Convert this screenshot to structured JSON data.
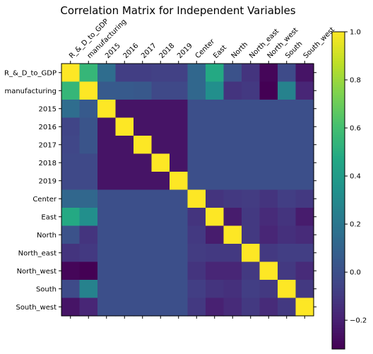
{
  "chart_data": {
    "type": "heatmap",
    "title": "Correlation Matrix for Independent Variables",
    "labels": [
      "R_&_D_to_GDP",
      "manufacturing",
      "2015",
      "2016",
      "2017",
      "2018",
      "2019",
      "Center",
      "East",
      "North",
      "North_east",
      "North_west",
      "South",
      "South_west"
    ],
    "matrix": [
      [
        1.0,
        0.55,
        0.15,
        -0.08,
        -0.08,
        -0.07,
        -0.07,
        0.12,
        0.48,
        0.01,
        -0.12,
        -0.3,
        -0.02,
        -0.25
      ],
      [
        0.55,
        1.0,
        0.05,
        0.05,
        0.04,
        -0.03,
        -0.03,
        0.12,
        0.33,
        -0.12,
        -0.1,
        -0.32,
        0.26,
        -0.18
      ],
      [
        0.15,
        0.05,
        1.0,
        -0.25,
        -0.25,
        -0.25,
        -0.25,
        0.0,
        0.0,
        0.0,
        0.0,
        0.0,
        0.0,
        0.0
      ],
      [
        -0.05,
        0.02,
        -0.25,
        1.0,
        -0.25,
        -0.25,
        -0.25,
        0.0,
        0.0,
        0.0,
        0.0,
        0.0,
        0.0,
        0.0
      ],
      [
        -0.04,
        0.02,
        -0.25,
        -0.25,
        1.0,
        -0.25,
        -0.25,
        0.0,
        0.0,
        0.0,
        0.0,
        0.0,
        0.0,
        0.0
      ],
      [
        -0.03,
        -0.03,
        -0.25,
        -0.25,
        -0.25,
        1.0,
        -0.25,
        0.0,
        0.0,
        0.0,
        0.0,
        0.0,
        0.0,
        0.0
      ],
      [
        -0.03,
        -0.03,
        -0.25,
        -0.25,
        -0.25,
        -0.25,
        1.0,
        0.0,
        0.0,
        0.0,
        0.0,
        0.0,
        0.0,
        0.0
      ],
      [
        0.12,
        0.12,
        0.0,
        0.0,
        0.0,
        0.0,
        0.0,
        1.0,
        -0.12,
        -0.1,
        -0.09,
        -0.12,
        -0.08,
        -0.1
      ],
      [
        0.48,
        0.33,
        0.0,
        0.0,
        0.0,
        0.0,
        0.0,
        -0.12,
        1.0,
        -0.22,
        -0.1,
        -0.16,
        -0.12,
        -0.22
      ],
      [
        0.01,
        -0.12,
        0.0,
        0.0,
        0.0,
        0.0,
        0.0,
        -0.1,
        -0.22,
        1.0,
        -0.1,
        -0.18,
        -0.14,
        -0.16
      ],
      [
        -0.12,
        -0.1,
        0.0,
        0.0,
        0.0,
        0.0,
        0.0,
        -0.09,
        -0.1,
        -0.1,
        1.0,
        -0.1,
        -0.08,
        -0.08
      ],
      [
        -0.3,
        -0.32,
        0.0,
        0.0,
        0.0,
        0.0,
        0.0,
        -0.12,
        -0.18,
        -0.18,
        -0.1,
        1.0,
        -0.1,
        -0.16
      ],
      [
        -0.02,
        0.26,
        0.0,
        0.0,
        0.0,
        0.0,
        0.0,
        -0.08,
        -0.12,
        -0.14,
        -0.08,
        -0.1,
        1.0,
        -0.1
      ],
      [
        -0.25,
        -0.18,
        0.0,
        0.0,
        0.0,
        0.0,
        0.0,
        -0.1,
        -0.2,
        -0.16,
        -0.1,
        -0.16,
        -0.1,
        1.0
      ]
    ],
    "colormap": "viridis",
    "colorbar": {
      "vmin": -0.32,
      "vmax": 1.0,
      "ticks": [
        1.0,
        0.8,
        0.6,
        0.4,
        0.2,
        0.0,
        -0.2
      ],
      "tick_labels": [
        "1.0",
        "0.8",
        "0.6",
        "0.4",
        "0.2",
        "0.0",
        "−0.2"
      ]
    },
    "xlabel": "",
    "ylabel": ""
  }
}
